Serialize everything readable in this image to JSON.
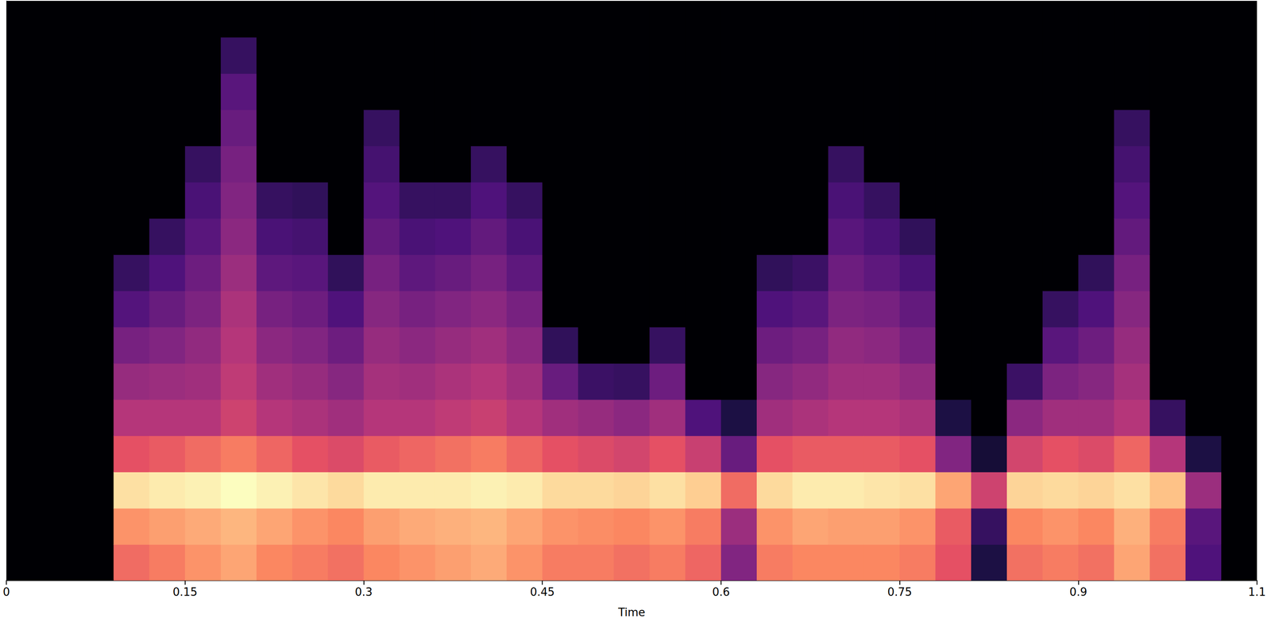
{
  "chart_data": {
    "type": "heatmap",
    "x_label": "Time",
    "x": [
      0,
      0.03,
      0.06,
      0.09,
      0.12,
      0.15,
      0.18,
      0.21,
      0.24,
      0.27,
      0.3,
      0.33,
      0.36,
      0.39,
      0.42,
      0.45,
      0.48,
      0.51,
      0.54,
      0.57,
      0.6,
      0.63,
      0.66,
      0.69,
      0.72,
      0.75,
      0.78,
      0.81,
      0.84,
      0.87,
      0.9,
      0.93,
      0.96,
      0.99,
      1.02
    ],
    "y": [
      0,
      1,
      2,
      3,
      4,
      5,
      6,
      7,
      8,
      9,
      10,
      11,
      12,
      13,
      14,
      15
    ],
    "z": [
      [
        -80,
        -80,
        -80,
        -80,
        -80,
        -80,
        -80,
        -80,
        -80,
        -80,
        -80,
        -80,
        -80,
        -80,
        -80,
        -80
      ],
      [
        -80,
        -80,
        -80,
        -80,
        -80,
        -80,
        -80,
        -80,
        -80,
        -80,
        -80,
        -80,
        -80,
        -80,
        -80,
        -80
      ],
      [
        -80,
        -80,
        -80,
        -80,
        -80,
        -80,
        -80,
        -80,
        -80,
        -80,
        -80,
        -80,
        -80,
        -80,
        -80,
        -80
      ],
      [
        -25,
        -18,
        -5,
        -30,
        -40,
        -46,
        -52,
        -59,
        -65,
        -80,
        -80,
        -80,
        -80,
        -80,
        -80,
        -80
      ],
      [
        -22,
        -16,
        -3,
        -28,
        -40,
        -45,
        -50,
        -55,
        -60,
        -65,
        -80,
        -80,
        -80,
        -80,
        -80,
        -80
      ],
      [
        -18,
        -14,
        -2,
        -25,
        -40,
        -44,
        -47,
        -51,
        -54,
        -58,
        -61,
        -65,
        -80,
        -80,
        -80,
        -80
      ],
      [
        -15,
        -12,
        0,
        -22,
        -35,
        -38,
        -40,
        -42,
        -45,
        -48,
        -50,
        -52,
        -55,
        -58,
        -65,
        -80
      ],
      [
        -20,
        -15,
        -2,
        -26,
        -40,
        -44,
        -48,
        -52,
        -57,
        -61,
        -65,
        -80,
        -80,
        -80,
        -80,
        -80
      ],
      [
        -22,
        -18,
        -4,
        -30,
        -42,
        -46,
        -50,
        -54,
        -58,
        -62,
        -66,
        -80,
        -80,
        -80,
        -80,
        -80
      ],
      [
        -24,
        -20,
        -6,
        -32,
        -44,
        -49,
        -54,
        -60,
        -66,
        -80,
        -80,
        -80,
        -80,
        -80,
        -80,
        -80
      ],
      [
        -20,
        -16,
        -3,
        -28,
        -40,
        -43,
        -46,
        -49,
        -52,
        -56,
        -59,
        -62,
        -65,
        -80,
        -80,
        -80
      ],
      [
        -18,
        -14,
        -3,
        -26,
        -40,
        -44,
        -48,
        -52,
        -57,
        -61,
        -65,
        -80,
        -80,
        -80,
        -80,
        -80
      ],
      [
        -16,
        -13,
        -3,
        -24,
        -38,
        -42,
        -46,
        -50,
        -55,
        -60,
        -65,
        -80,
        -80,
        -80,
        -80,
        -80
      ],
      [
        -14,
        -12,
        -2,
        -22,
        -36,
        -40,
        -44,
        -48,
        -52,
        -56,
        -60,
        -65,
        -80,
        -80,
        -80,
        -80
      ],
      [
        -18,
        -15,
        -3,
        -26,
        -40,
        -44,
        -48,
        -52,
        -57,
        -61,
        -65,
        -80,
        -80,
        -80,
        -80,
        -80
      ],
      [
        -22,
        -18,
        -6,
        -30,
        -44,
        -55,
        -66,
        -80,
        -80,
        -80,
        -80,
        -80,
        -80,
        -80,
        -80,
        -80
      ],
      [
        -22,
        -19,
        -6,
        -32,
        -46,
        -64,
        -80,
        -80,
        -80,
        -80,
        -80,
        -80,
        -80,
        -80,
        -80,
        -80
      ],
      [
        -24,
        -20,
        -7,
        -34,
        -48,
        -65,
        -80,
        -80,
        -80,
        -80,
        -80,
        -80,
        -80,
        -80,
        -80,
        -80
      ],
      [
        -22,
        -18,
        -5,
        -30,
        -44,
        -54,
        -65,
        -80,
        -80,
        -80,
        -80,
        -80,
        -80,
        -80,
        -80,
        -80
      ],
      [
        -26,
        -22,
        -8,
        -36,
        -60,
        -80,
        -80,
        -80,
        -80,
        -80,
        -80,
        -80,
        -80,
        -80,
        -80,
        -80
      ],
      [
        -50,
        -45,
        -25,
        -55,
        -70,
        -80,
        -80,
        -80,
        -80,
        -80,
        -80,
        -80,
        -80,
        -80,
        -80,
        -80
      ],
      [
        -22,
        -18,
        -6,
        -30,
        -44,
        -49,
        -54,
        -60,
        -66,
        -80,
        -80,
        -80,
        -80,
        -80,
        -80,
        -80
      ],
      [
        -20,
        -15,
        -3,
        -28,
        -42,
        -47,
        -52,
        -58,
        -64,
        -80,
        -80,
        -80,
        -80,
        -80,
        -80,
        -80
      ],
      [
        -20,
        -16,
        -3,
        -28,
        -40,
        -44,
        -47,
        -51,
        -54,
        -58,
        -61,
        -65,
        -80,
        -80,
        -80,
        -80
      ],
      [
        -20,
        -16,
        -4,
        -28,
        -40,
        -44,
        -48,
        -52,
        -57,
        -61,
        -65,
        -80,
        -80,
        -80,
        -80,
        -80
      ],
      [
        -22,
        -18,
        -5,
        -30,
        -42,
        -47,
        -52,
        -56,
        -61,
        -66,
        -80,
        -80,
        -80,
        -80,
        -80,
        -80
      ],
      [
        -30,
        -28,
        -15,
        -50,
        -70,
        -80,
        -80,
        -80,
        -80,
        -80,
        -80,
        -80,
        -80,
        -80,
        -80,
        -80
      ],
      [
        -70,
        -65,
        -35,
        -72,
        -80,
        -80,
        -80,
        -80,
        -80,
        -80,
        -80,
        -80,
        -80,
        -80,
        -80,
        -80
      ],
      [
        -24,
        -20,
        -7,
        -34,
        -48,
        -64,
        -80,
        -80,
        -80,
        -80,
        -80,
        -80,
        -80,
        -80,
        -80,
        -80
      ],
      [
        -22,
        -18,
        -6,
        -30,
        -44,
        -51,
        -58,
        -65,
        -80,
        -80,
        -80,
        -80,
        -80,
        -80,
        -80,
        -80
      ],
      [
        -24,
        -20,
        -7,
        -32,
        -44,
        -49,
        -54,
        -60,
        -66,
        -80,
        -80,
        -80,
        -80,
        -80,
        -80,
        -80
      ],
      [
        -15,
        -13,
        -5,
        -26,
        -40,
        -43,
        -46,
        -49,
        -52,
        -56,
        -59,
        -62,
        -65,
        -80,
        -80,
        -80
      ],
      [
        -24,
        -22,
        -10,
        -40,
        -65,
        -80,
        -80,
        -80,
        -80,
        -80,
        -80,
        -80,
        -80,
        -80,
        -80,
        -80
      ],
      [
        -60,
        -58,
        -45,
        -70,
        -80,
        -80,
        -80,
        -80,
        -80,
        -80,
        -80,
        -80,
        -80,
        -80,
        -80,
        -80
      ],
      [
        -80,
        -80,
        -80,
        -80,
        -80,
        -80,
        -80,
        -80,
        -80,
        -80,
        -80,
        -80,
        -80,
        -80,
        -80,
        -80
      ]
    ],
    "xlim": [
      0,
      1.05
    ],
    "ylim": [
      0,
      16
    ],
    "xticks": [
      0,
      0.15,
      0.3,
      0.45,
      0.6,
      0.75,
      0.9,
      {
        "value": 1.05,
        "label": "1.1"
      }
    ],
    "clim": [
      -80,
      0
    ],
    "tick_labels": "x"
  }
}
